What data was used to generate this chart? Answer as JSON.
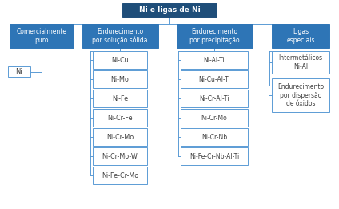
{
  "title": "Ni e ligas de Ni",
  "title_bg": "#1f4e79",
  "title_text_color": "#ffffff",
  "header_bg": "#2e75b6",
  "header_text_color": "#ffffff",
  "leaf_bg": "#ffffff",
  "leaf_border": "#5b9bd5",
  "leaf_text_color": "#404040",
  "line_color": "#5b9bd5",
  "background": "#ffffff",
  "categories": [
    "Comercialmente\npuro",
    "Endurecimento\npor solução sólida",
    "Endurecimento\npor precipitação",
    "Ligas\nespeciais"
  ],
  "col2_items": [
    "Ni-Cu",
    "Ni-Mo",
    "Ni-Fe",
    "Ni-Cr-Fe",
    "Ni-Cr-Mo",
    "Ni-Cr-Mo-W",
    "Ni-Fe-Cr-Mo"
  ],
  "col3_items": [
    "Ni-Al-Ti",
    "Ni-Cu-Al-Ti",
    "Ni-Cr-Al-Ti",
    "Ni-Cr-Mo",
    "Ni-Cr-Nb",
    "Ni-Fe-Cr-Nb-Al-Ti"
  ],
  "col4_items": [
    "Intermetálicos\nNi-Al",
    "Endurecimento\npor dispersão\nde óxidos"
  ],
  "fig_width": 4.24,
  "fig_height": 2.61,
  "dpi": 100
}
